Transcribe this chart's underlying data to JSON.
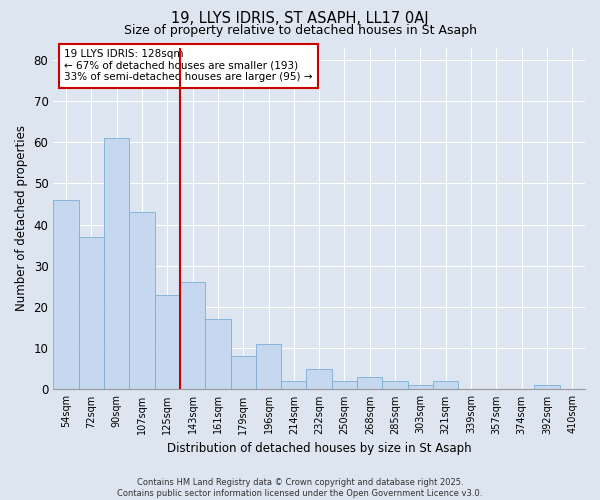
{
  "title1": "19, LLYS IDRIS, ST ASAPH, LL17 0AJ",
  "title2": "Size of property relative to detached houses in St Asaph",
  "xlabel": "Distribution of detached houses by size in St Asaph",
  "ylabel": "Number of detached properties",
  "categories": [
    "54sqm",
    "72sqm",
    "90sqm",
    "107sqm",
    "125sqm",
    "143sqm",
    "161sqm",
    "179sqm",
    "196sqm",
    "214sqm",
    "232sqm",
    "250sqm",
    "268sqm",
    "285sqm",
    "303sqm",
    "321sqm",
    "339sqm",
    "357sqm",
    "374sqm",
    "392sqm",
    "410sqm"
  ],
  "values": [
    46,
    37,
    61,
    43,
    23,
    26,
    17,
    8,
    11,
    2,
    5,
    2,
    3,
    2,
    1,
    2,
    0,
    0,
    0,
    1,
    0
  ],
  "bar_color": "#c5d8f0",
  "bar_edge_color": "#7aafd4",
  "vline_x": 4.5,
  "vline_color": "#cc0000",
  "annotation_text": "19 LLYS IDRIS: 128sqm\n← 67% of detached houses are smaller (193)\n33% of semi-detached houses are larger (95) →",
  "annotation_box_color": "#ffffff",
  "annotation_box_edge": "#cc0000",
  "ylim": [
    0,
    83
  ],
  "yticks": [
    0,
    10,
    20,
    30,
    40,
    50,
    60,
    70,
    80
  ],
  "background_color": "#dde5f0",
  "grid_color": "#ffffff",
  "footnote": "Contains HM Land Registry data © Crown copyright and database right 2025.\nContains public sector information licensed under the Open Government Licence v3.0."
}
